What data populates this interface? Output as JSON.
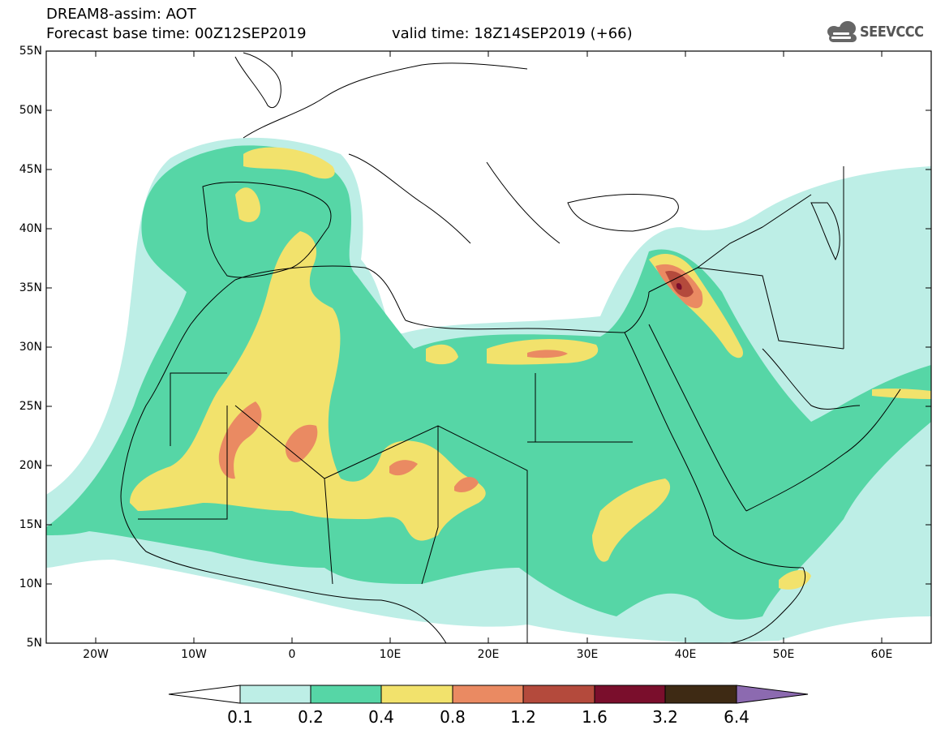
{
  "header": {
    "title_line1": "DREAM8-assim: AOT",
    "title_line2": "Forecast base time: 00Z12SEP2019",
    "valid_text": "valid time: 18Z14SEP2019 (+66)",
    "logo_text": "SEEVCCC"
  },
  "map": {
    "lon_range": [
      -25,
      65
    ],
    "lat_range": [
      5,
      55
    ],
    "lat_labels": [
      "55N",
      "50N",
      "45N",
      "40N",
      "35N",
      "30N",
      "25N",
      "20N",
      "15N",
      "10N",
      "5N"
    ],
    "lon_labels": [
      "20W",
      "10W",
      "0",
      "10E",
      "20E",
      "30E",
      "40E",
      "50E",
      "60E"
    ]
  },
  "colorbar": {
    "labels": [
      "0.1",
      "0.2",
      "0.4",
      "0.8",
      "1.2",
      "1.6",
      "3.2",
      "6.4"
    ],
    "colors": [
      "#ffffff",
      "#bdeee6",
      "#56d6a6",
      "#f2e26c",
      "#ea8a62",
      "#b44a3c",
      "#7a0e2c",
      "#3e2a14",
      "#8c6ab0"
    ]
  }
}
